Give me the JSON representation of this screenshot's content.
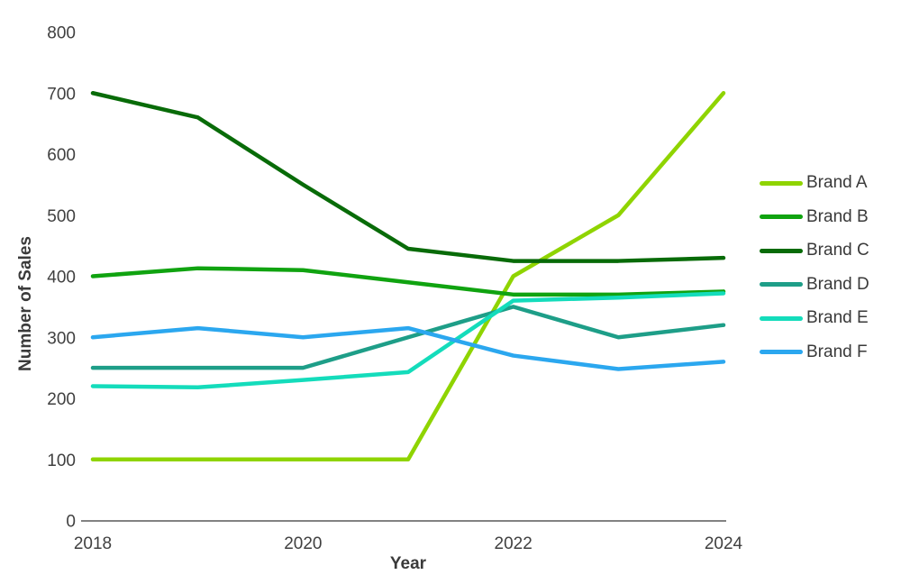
{
  "chart_data": {
    "type": "line",
    "title": "",
    "xlabel": "Year",
    "ylabel": "Number of Sales",
    "x": [
      2018,
      2019,
      2020,
      2021,
      2022,
      2023,
      2024
    ],
    "x_ticks": [
      2018,
      2020,
      2022,
      2024
    ],
    "y_ticks": [
      0,
      100,
      200,
      300,
      400,
      500,
      600,
      700,
      800
    ],
    "ylim": [
      0,
      800
    ],
    "grid": false,
    "legend_position": "right",
    "series": [
      {
        "name": "Brand A",
        "color": "#8fd400",
        "values": [
          100,
          100,
          100,
          100,
          400,
          500,
          700
        ]
      },
      {
        "name": "Brand B",
        "color": "#10a310",
        "values": [
          400,
          413,
          410,
          390,
          370,
          370,
          375
        ]
      },
      {
        "name": "Brand C",
        "color": "#086b08",
        "values": [
          700,
          660,
          550,
          445,
          425,
          425,
          430
        ]
      },
      {
        "name": "Brand D",
        "color": "#1e9e88",
        "values": [
          250,
          250,
          250,
          300,
          350,
          300,
          320
        ]
      },
      {
        "name": "Brand E",
        "color": "#14dcbb",
        "values": [
          220,
          218,
          230,
          243,
          360,
          365,
          372
        ]
      },
      {
        "name": "Brand F",
        "color": "#2ba7ef",
        "values": [
          300,
          315,
          300,
          315,
          270,
          248,
          260
        ]
      }
    ],
    "axis_line_color": "#595959",
    "tick_label_color": "#404040"
  }
}
